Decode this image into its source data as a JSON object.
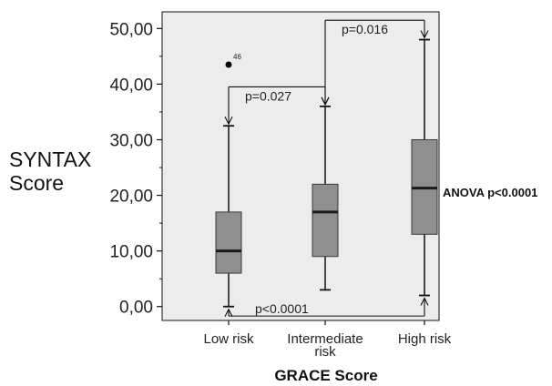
{
  "chart_data": {
    "type": "box",
    "title": "",
    "xlabel": "GRACE Score",
    "ylabel_line1": "SYNTAX",
    "ylabel_line2": "Score",
    "ylim": [
      -2.5,
      53
    ],
    "y_ticks": [
      {
        "value": 0,
        "label": "0,00"
      },
      {
        "value": 10,
        "label": "10,00"
      },
      {
        "value": 20,
        "label": "20,00"
      },
      {
        "value": 30,
        "label": "30,00"
      },
      {
        "value": 40,
        "label": "40,00"
      },
      {
        "value": 50,
        "label": "50,00"
      }
    ],
    "categories": [
      {
        "lines": [
          "Low risk"
        ]
      },
      {
        "lines": [
          "Intermediate",
          "risk"
        ]
      },
      {
        "lines": [
          "High risk"
        ]
      }
    ],
    "boxes": [
      {
        "whisker_low": 0,
        "q1": 6,
        "median": 10,
        "q3": 17,
        "whisker_high": 32.5,
        "outliers": [
          {
            "value": 43.5,
            "label": "46"
          }
        ]
      },
      {
        "whisker_low": 3,
        "q1": 9,
        "median": 17,
        "q3": 22,
        "whisker_high": 36,
        "outliers": []
      },
      {
        "whisker_low": 2,
        "q1": 13,
        "median": 21.3,
        "q3": 30,
        "whisker_high": 48,
        "outliers": []
      }
    ],
    "comparisons": [
      {
        "from": 0,
        "to": 1,
        "y": 39.5,
        "label": "p=0.027"
      },
      {
        "from": 1,
        "to": 2,
        "y": 51.5,
        "label": "p=0.016"
      },
      {
        "from": 0,
        "to": 2,
        "y": -1.7,
        "label": "p<0.0001"
      }
    ],
    "annotation": "ANOVA p<0.0001",
    "grid": false,
    "colors": {
      "plot_bg": "#ececec",
      "box_fill": "#8f8f8f",
      "line": "#111111"
    }
  }
}
